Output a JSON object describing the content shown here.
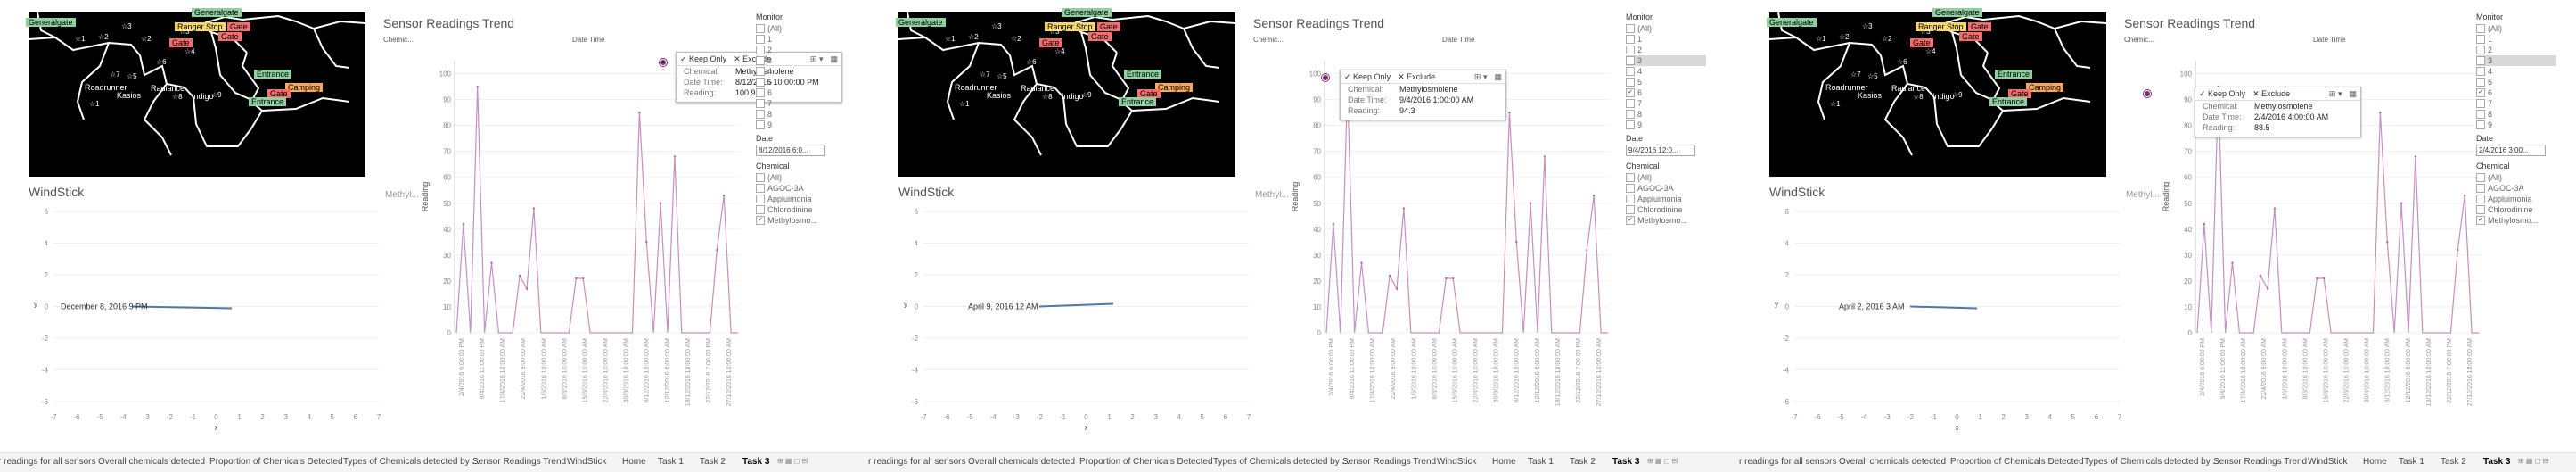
{
  "panels": [
    {
      "tooltip": {
        "keep_only": "✓ Keep Only",
        "exclude": "✕ Exclude",
        "chemical_label": "Chemical:",
        "chemical": "Methylosmolene",
        "datetime_label": "Date Time:",
        "datetime": "8/12/2016 10:00:00 PM",
        "reading_label": "Reading:",
        "reading": "100.9"
      },
      "windstick_label": "December 8, 2016 9 PM",
      "date_filter": "8/12/2016 6:0...",
      "monitor_items": [
        "(All)",
        "1",
        "2",
        "3",
        "4",
        "5",
        "6",
        "7",
        "8",
        "9"
      ],
      "monitor_checked": [
        false,
        false,
        false,
        false,
        false,
        false,
        false,
        false,
        false,
        false
      ],
      "monitor_selected": -1
    },
    {
      "tooltip": {
        "keep_only": "✓ Keep Only",
        "exclude": "✕ Exclude",
        "chemical_label": "Chemical:",
        "chemical": "Methylosmolene",
        "datetime_label": "Date Time:",
        "datetime": "9/4/2016 1:00:00 AM",
        "reading_label": "Reading:",
        "reading": "94.3"
      },
      "windstick_label": "April 9, 2016 12 AM",
      "date_filter": "9/4/2016 12:0...",
      "monitor_items": [
        "(All)",
        "1",
        "2",
        "3",
        "4",
        "5",
        "6",
        "7",
        "8",
        "9"
      ],
      "monitor_checked": [
        false,
        false,
        false,
        false,
        false,
        false,
        true,
        false,
        false,
        false
      ],
      "monitor_selected": 3
    },
    {
      "tooltip": {
        "keep_only": "✓ Keep Only",
        "exclude": "✕ Exclude",
        "chemical_label": "Chemical:",
        "chemical": "Methylosmolene",
        "datetime_label": "Date Time:",
        "datetime": "2/4/2016 4:00:00 AM",
        "reading_label": "Reading:",
        "reading": "88.5"
      },
      "windstick_label": "April 2, 2016 3 AM",
      "date_filter": "2/4/2016 3:00...",
      "monitor_items": [
        "(All)",
        "1",
        "2",
        "3",
        "4",
        "5",
        "6",
        "7",
        "8",
        "9"
      ],
      "monitor_checked": [
        false,
        false,
        false,
        false,
        false,
        false,
        true,
        false,
        false,
        false
      ],
      "monitor_selected": 3
    }
  ],
  "map": {
    "tags": [
      {
        "text": "Generalgate",
        "color": "green"
      },
      {
        "text": "Generalgate",
        "color": "green"
      },
      {
        "text": "Ranger Stop",
        "color": "yellow"
      },
      {
        "text": "Gate",
        "color": "red"
      },
      {
        "text": "Gate",
        "color": "red"
      },
      {
        "text": "Gate",
        "color": "red"
      },
      {
        "text": "Entrance",
        "color": "green"
      },
      {
        "text": "Camping",
        "color": "orange"
      },
      {
        "text": "Gate",
        "color": "red"
      },
      {
        "text": "Entrance",
        "color": "green"
      }
    ],
    "labels": [
      "Roadrunner",
      "Radiance",
      "Kasios",
      "Indigo"
    ]
  },
  "sensor": {
    "title": "Sensor Readings Trend",
    "chemical_col": "Chemic...",
    "datetime_col": "Date Time",
    "ylabel": "Reading",
    "row_label": "Methyl...",
    "yticks": [
      "100",
      "90",
      "80",
      "70",
      "60",
      "50",
      "40",
      "30",
      "20",
      "10",
      "0"
    ],
    "xticks": [
      "2/4/2016 6:00:00 PM",
      "9/4/2016 11:00:00 PM",
      "17/4/2016 10:00:00 AM",
      "22/4/2016 9:00:00 AM",
      "1/6/2016 10:00:00 AM",
      "8/8/2016 10:00:00 AM",
      "15/8/2016 10:00:00 AM",
      "22/8/2016 10:00:00 AM",
      "30/8/2016 10:00:00 AM",
      "6/12/2016 10:00:00 AM",
      "12/12/2016 6:00:00 AM",
      "18/12/2016 10:00:00 AM",
      "22/12/2016 7:00:00 PM",
      "27/12/2016 10:00:00 AM"
    ]
  },
  "chart_data": {
    "type": "line",
    "title": "Sensor Readings Trend",
    "xlabel": "Date Time",
    "ylabel": "Reading",
    "ylim": [
      0,
      105
    ],
    "series": [
      {
        "name": "Methylosmolene",
        "values": [
          0,
          42,
          0,
          95,
          0,
          27,
          0,
          0,
          0,
          22,
          17,
          48,
          0,
          0,
          0,
          0,
          0,
          21,
          21,
          0,
          0,
          0,
          0,
          0,
          0,
          0,
          85,
          35,
          0,
          50,
          0,
          68,
          0,
          0,
          0,
          0,
          0,
          32,
          53,
          0,
          0
        ]
      }
    ]
  },
  "windstick": {
    "title": "WindStick",
    "yticks": [
      "6",
      "4",
      "2",
      "0",
      "-2",
      "-4",
      "-6"
    ],
    "xticks": [
      "-7",
      "-6",
      "-5",
      "-4",
      "-3",
      "-2",
      "-1",
      "0",
      "1",
      "2",
      "3",
      "4",
      "5",
      "6",
      "7"
    ],
    "xlabel": "x",
    "ylabel": "y"
  },
  "filters": {
    "monitor_title": "Monitor",
    "date_title": "Date",
    "chemical_title": "Chemical",
    "chemical_items": [
      "(All)",
      "AGOC-3A",
      "Appluimonia",
      "Chlorodinine",
      "Methylosmo..."
    ],
    "chemical_checked": [
      false,
      false,
      false,
      false,
      true
    ]
  },
  "tabs": {
    "labels": [
      "r readings for all sensors",
      "Overall chemicals detected",
      "Proportion of Chemicals Detected",
      "Types of Chemicals detected by ...",
      "Sensor Readings Trend",
      "WindStick",
      "Home",
      "Task 1",
      "Task 2",
      "Task 3"
    ],
    "active": "Task 3"
  }
}
